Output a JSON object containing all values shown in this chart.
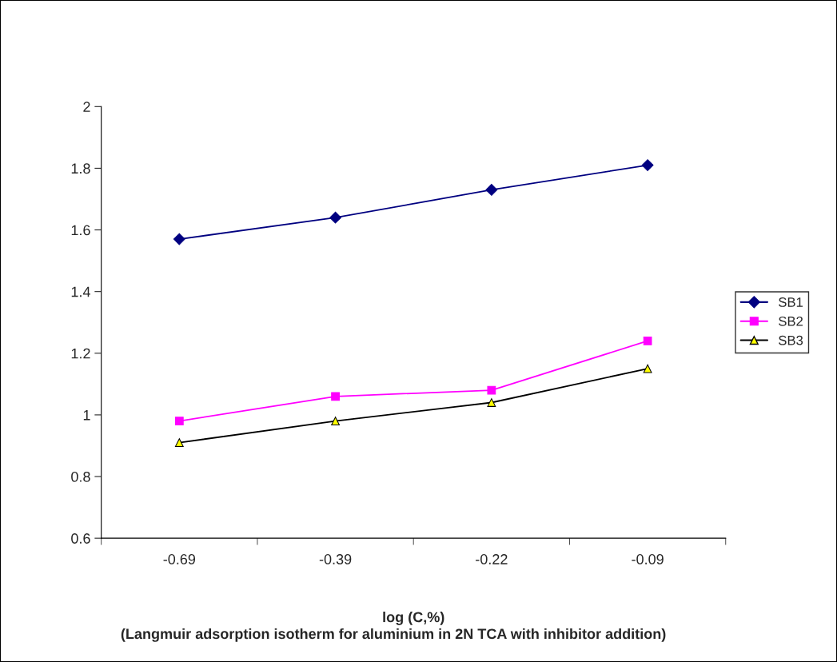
{
  "chart_data": {
    "type": "line",
    "categories": [
      "-0.69",
      "-0.39",
      "-0.22",
      "-0.09"
    ],
    "series": [
      {
        "name": "SB1",
        "color": "#000080",
        "marker": "diamond",
        "values": [
          1.57,
          1.64,
          1.73,
          1.81
        ]
      },
      {
        "name": "SB2",
        "color": "#ff00ff",
        "marker": "square",
        "values": [
          0.98,
          1.06,
          1.08,
          1.24
        ]
      },
      {
        "name": "SB3",
        "color": "#000000",
        "marker": "triangle",
        "values": [
          0.91,
          0.98,
          1.04,
          1.15
        ]
      }
    ],
    "ylim": [
      0.6,
      2
    ],
    "yticks": [
      0.6,
      0.8,
      1,
      1.2,
      1.4,
      1.6,
      1.8,
      2
    ],
    "xlabel": "log (C,%)",
    "annotations": [
      "(Langmuir adsorption isotherm for aluminium in 2N TCA with inhibitor addition)"
    ],
    "grid": false,
    "legend": "right",
    "line_style": "solid"
  }
}
